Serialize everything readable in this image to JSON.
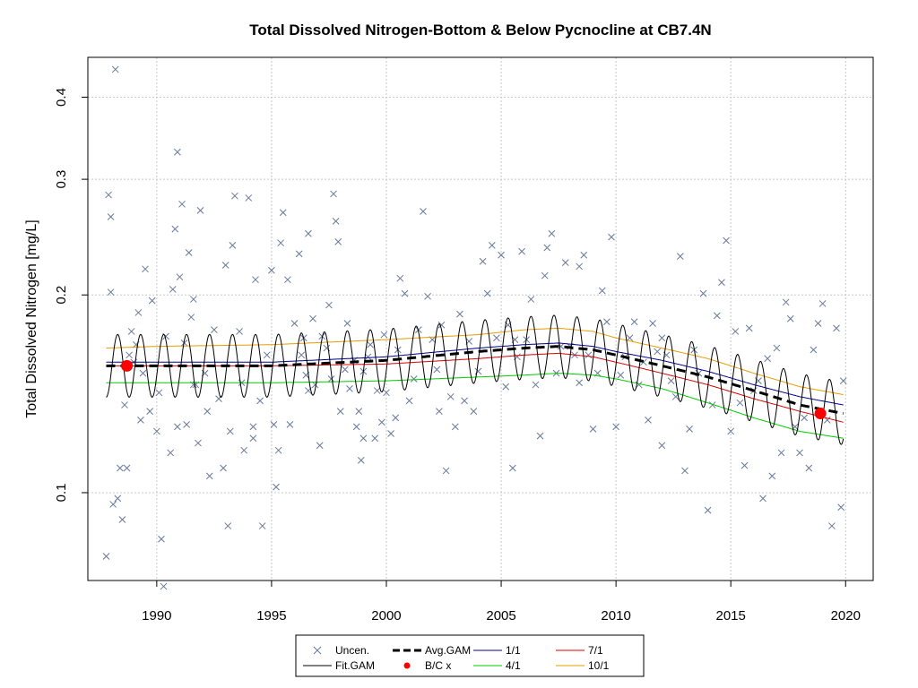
{
  "chart_data": {
    "type": "scatter",
    "title": "Total Dissolved Nitrogen-Bottom & Below Pycnocline at CB7.4N",
    "xlabel": "",
    "ylabel": "Total Dissolved Nitrogen [mg/L]",
    "y_scale": "log",
    "xlim": [
      1987.0,
      2021.2
    ],
    "ylim": [
      0.0735,
      0.46
    ],
    "x_ticks": [
      1990,
      1995,
      2000,
      2005,
      2010,
      2015,
      2020
    ],
    "x_tick_labels": [
      "1990",
      "1995",
      "2000",
      "2005",
      "2010",
      "2015",
      "2020"
    ],
    "y_ticks": [
      0.1,
      0.2,
      0.3,
      0.4
    ],
    "y_tick_labels": [
      "0.1",
      "0.2",
      "0.3",
      "0.4"
    ],
    "grid": true,
    "legend": {
      "placement": "bottom-center",
      "entries": [
        {
          "label": "Uncen.",
          "symbol": "x",
          "color": "#68789b"
        },
        {
          "label": "Avg.GAM",
          "symbol": "dashed-line",
          "color": "#000000"
        },
        {
          "label": "1/1",
          "symbol": "line",
          "color": "#00008b"
        },
        {
          "label": "7/1",
          "symbol": "line",
          "color": "#dd0000"
        },
        {
          "label": "Fit.GAM",
          "symbol": "line",
          "color": "#000000"
        },
        {
          "label": "B/C x",
          "symbol": "dot",
          "color": "#ff0000"
        },
        {
          "label": "4/1",
          "symbol": "line",
          "color": "#00cc00"
        },
        {
          "label": "10/1",
          "symbol": "line",
          "color": "#e69d00"
        }
      ]
    },
    "colors": {
      "points": "#68789b",
      "avg_gam": "#000000",
      "fit_gam": "#000000",
      "bc_x": "#ff0000",
      "s_1_1": "#00008b",
      "s_4_1": "#00cc00",
      "s_7_1": "#dd0000",
      "s_10_1": "#e69d00",
      "grid": "#c8c8c8"
    },
    "fit_gam_seasonal_amplitude": 0.11,
    "series": [
      {
        "name": "Avg.GAM",
        "x": [
          1987.8,
          1990,
          1995,
          2000,
          2004,
          2006,
          2007.5,
          2009,
          2010,
          2012,
          2014,
          2016,
          2018,
          2019.9
        ],
        "values": [
          0.156,
          0.156,
          0.156,
          0.159,
          0.164,
          0.166,
          0.167,
          0.165,
          0.162,
          0.156,
          0.15,
          0.143,
          0.136,
          0.132
        ]
      },
      {
        "name": "1/1",
        "x": [
          1987.8,
          1990,
          1995,
          2000,
          2004,
          2006,
          2007.5,
          2009,
          2010,
          2012,
          2014,
          2016,
          2018,
          2019.9
        ],
        "values": [
          0.158,
          0.158,
          0.158,
          0.161,
          0.166,
          0.168,
          0.169,
          0.167,
          0.164,
          0.159,
          0.153,
          0.146,
          0.14,
          0.136
        ]
      },
      {
        "name": "4/1",
        "x": [
          1987.8,
          1990,
          1995,
          2000,
          2004,
          2006,
          2007.5,
          2009,
          2010,
          2012,
          2014,
          2016,
          2018,
          2019.9
        ],
        "values": [
          0.147,
          0.147,
          0.147,
          0.148,
          0.15,
          0.151,
          0.152,
          0.151,
          0.149,
          0.144,
          0.137,
          0.13,
          0.124,
          0.121
        ]
      },
      {
        "name": "7/1",
        "x": [
          1987.8,
          1990,
          1995,
          2000,
          2004,
          2006,
          2007.5,
          2009,
          2010,
          2012,
          2014,
          2016,
          2018,
          2019.9
        ],
        "values": [
          0.156,
          0.156,
          0.156,
          0.157,
          0.16,
          0.162,
          0.163,
          0.161,
          0.158,
          0.152,
          0.146,
          0.139,
          0.133,
          0.128
        ]
      },
      {
        "name": "10/1",
        "x": [
          1987.8,
          1990,
          1995,
          2000,
          2004,
          2006,
          2007.5,
          2009,
          2010,
          2012,
          2014,
          2016,
          2018,
          2019.9
        ],
        "values": [
          0.166,
          0.167,
          0.168,
          0.171,
          0.174,
          0.177,
          0.178,
          0.176,
          0.172,
          0.166,
          0.16,
          0.152,
          0.145,
          0.141
        ]
      }
    ],
    "bc_points": [
      {
        "x": 1988.7,
        "y": 0.156
      },
      {
        "x": 2018.9,
        "y": 0.132
      }
    ],
    "scatter_points": [
      [
        1987.8,
        0.08
      ],
      [
        1987.9,
        0.284
      ],
      [
        1988.0,
        0.263
      ],
      [
        1988.0,
        0.202
      ],
      [
        1988.1,
        0.096
      ],
      [
        1988.2,
        0.441
      ],
      [
        1988.3,
        0.098
      ],
      [
        1988.4,
        0.109
      ],
      [
        1988.5,
        0.091
      ],
      [
        1988.6,
        0.136
      ],
      [
        1988.7,
        0.109
      ],
      [
        1988.8,
        0.162
      ],
      [
        1988.9,
        0.176
      ],
      [
        1989.0,
        0.158
      ],
      [
        1989.2,
        0.188
      ],
      [
        1989.3,
        0.129
      ],
      [
        1989.4,
        0.152
      ],
      [
        1989.5,
        0.219
      ],
      [
        1989.7,
        0.133
      ],
      [
        1989.8,
        0.196
      ],
      [
        1990.0,
        0.124
      ],
      [
        1990.1,
        0.142
      ],
      [
        1990.2,
        0.085
      ],
      [
        1990.3,
        0.072
      ],
      [
        1990.4,
        0.173
      ],
      [
        1990.6,
        0.115
      ],
      [
        1990.7,
        0.204
      ],
      [
        1990.8,
        0.252
      ],
      [
        1990.9,
        0.33
      ],
      [
        1991.0,
        0.213
      ],
      [
        1991.1,
        0.275
      ],
      [
        1991.2,
        0.169
      ],
      [
        1991.3,
        0.127
      ],
      [
        1991.4,
        0.232
      ],
      [
        1991.5,
        0.185
      ],
      [
        1991.6,
        0.197
      ],
      [
        1991.7,
        0.146
      ],
      [
        1991.8,
        0.119
      ],
      [
        1991.9,
        0.269
      ],
      [
        1992.1,
        0.152
      ],
      [
        1992.2,
        0.133
      ],
      [
        1992.3,
        0.106
      ],
      [
        1992.5,
        0.177
      ],
      [
        1992.7,
        0.139
      ],
      [
        1992.9,
        0.109
      ],
      [
        1993.0,
        0.222
      ],
      [
        1993.1,
        0.089
      ],
      [
        1993.2,
        0.124
      ],
      [
        1993.3,
        0.238
      ],
      [
        1993.4,
        0.283
      ],
      [
        1993.6,
        0.176
      ],
      [
        1993.7,
        0.147
      ],
      [
        1993.8,
        0.116
      ],
      [
        1994.0,
        0.281
      ],
      [
        1994.2,
        0.121
      ],
      [
        1994.3,
        0.211
      ],
      [
        1994.5,
        0.138
      ],
      [
        1994.6,
        0.089
      ],
      [
        1994.8,
        0.162
      ],
      [
        1995.0,
        0.218
      ],
      [
        1995.1,
        0.127
      ],
      [
        1995.2,
        0.102
      ],
      [
        1995.3,
        0.116
      ],
      [
        1995.4,
        0.24
      ],
      [
        1995.5,
        0.267
      ],
      [
        1995.7,
        0.211
      ],
      [
        1995.8,
        0.127
      ],
      [
        1996.0,
        0.181
      ],
      [
        1996.2,
        0.231
      ],
      [
        1996.3,
        0.162
      ],
      [
        1996.4,
        0.172
      ],
      [
        1996.5,
        0.151
      ],
      [
        1996.6,
        0.248
      ],
      [
        1996.8,
        0.184
      ],
      [
        1996.9,
        0.146
      ],
      [
        1997.1,
        0.118
      ],
      [
        1997.2,
        0.173
      ],
      [
        1997.4,
        0.166
      ],
      [
        1997.5,
        0.193
      ],
      [
        1997.6,
        0.149
      ],
      [
        1997.7,
        0.285
      ],
      [
        1997.8,
        0.259
      ],
      [
        1997.9,
        0.241
      ],
      [
        1998.0,
        0.133
      ],
      [
        1998.2,
        0.154
      ],
      [
        1998.3,
        0.181
      ],
      [
        1998.4,
        0.144
      ],
      [
        1998.6,
        0.159
      ],
      [
        1998.7,
        0.126
      ],
      [
        1998.8,
        0.133
      ],
      [
        1998.9,
        0.112
      ],
      [
        1999.0,
        0.121
      ],
      [
        1999.2,
        0.161
      ],
      [
        1999.3,
        0.168
      ],
      [
        1999.5,
        0.121
      ],
      [
        1999.6,
        0.143
      ],
      [
        1999.8,
        0.128
      ],
      [
        1999.9,
        0.174
      ],
      [
        2000.0,
        0.142
      ],
      [
        2000.2,
        0.123
      ],
      [
        2000.4,
        0.13
      ],
      [
        2000.5,
        0.165
      ],
      [
        2000.6,
        0.212
      ],
      [
        2000.8,
        0.201
      ],
      [
        2001.0,
        0.138
      ],
      [
        2001.2,
        0.149
      ],
      [
        2001.4,
        0.177
      ],
      [
        2001.6,
        0.268
      ],
      [
        2001.8,
        0.199
      ],
      [
        2002.0,
        0.171
      ],
      [
        2002.2,
        0.154
      ],
      [
        2002.4,
        0.18
      ],
      [
        2002.6,
        0.108
      ],
      [
        2002.8,
        0.14
      ],
      [
        2003.0,
        0.126
      ],
      [
        2003.2,
        0.187
      ],
      [
        2003.4,
        0.138
      ],
      [
        2003.6,
        0.17
      ],
      [
        2003.8,
        0.133
      ],
      [
        2004.0,
        0.153
      ],
      [
        2004.2,
        0.225
      ],
      [
        2004.4,
        0.201
      ],
      [
        2004.6,
        0.238
      ],
      [
        2004.8,
        0.172
      ],
      [
        2005.0,
        0.23
      ],
      [
        2005.2,
        0.145
      ],
      [
        2005.3,
        0.18
      ],
      [
        2005.5,
        0.109
      ],
      [
        2005.7,
        0.161
      ],
      [
        2005.9,
        0.233
      ],
      [
        2006.1,
        0.171
      ],
      [
        2006.3,
        0.197
      ],
      [
        2006.5,
        0.146
      ],
      [
        2006.7,
        0.122
      ],
      [
        2006.9,
        0.214
      ],
      [
        2007.0,
        0.236
      ],
      [
        2007.2,
        0.248
      ],
      [
        2007.4,
        0.152
      ],
      [
        2007.6,
        0.167
      ],
      [
        2007.8,
        0.224
      ],
      [
        2008.0,
        0.167
      ],
      [
        2008.2,
        0.162
      ],
      [
        2008.4,
        0.147
      ],
      [
        2008.6,
        0.23
      ],
      [
        2008.8,
        0.162
      ],
      [
        2009.0,
        0.125
      ],
      [
        2009.2,
        0.152
      ],
      [
        2009.4,
        0.203
      ],
      [
        2009.6,
        0.182
      ],
      [
        2009.8,
        0.245
      ],
      [
        2010.0,
        0.126
      ],
      [
        2010.2,
        0.151
      ],
      [
        2010.4,
        0.161
      ],
      [
        2010.6,
        0.172
      ],
      [
        2010.8,
        0.182
      ],
      [
        2011.0,
        0.146
      ],
      [
        2011.2,
        0.158
      ],
      [
        2011.4,
        0.129
      ],
      [
        2011.6,
        0.181
      ],
      [
        2011.8,
        0.164
      ],
      [
        2012.0,
        0.118
      ],
      [
        2012.2,
        0.162
      ],
      [
        2012.4,
        0.148
      ],
      [
        2012.6,
        0.14
      ],
      [
        2012.8,
        0.229
      ],
      [
        2013.0,
        0.108
      ],
      [
        2013.2,
        0.125
      ],
      [
        2013.4,
        0.165
      ],
      [
        2013.6,
        0.152
      ],
      [
        2013.8,
        0.201
      ],
      [
        2014.0,
        0.094
      ],
      [
        2014.2,
        0.136
      ],
      [
        2014.4,
        0.186
      ],
      [
        2014.6,
        0.209
      ],
      [
        2014.8,
        0.242
      ],
      [
        2015.0,
        0.124
      ],
      [
        2015.2,
        0.176
      ],
      [
        2015.4,
        0.137
      ],
      [
        2015.6,
        0.11
      ],
      [
        2015.8,
        0.178
      ],
      [
        2016.0,
        0.143
      ],
      [
        2016.2,
        0.148
      ],
      [
        2016.4,
        0.098
      ],
      [
        2016.6,
        0.16
      ],
      [
        2016.8,
        0.106
      ],
      [
        2017.0,
        0.166
      ],
      [
        2017.2,
        0.115
      ],
      [
        2017.4,
        0.195
      ],
      [
        2017.6,
        0.184
      ],
      [
        2017.8,
        0.126
      ],
      [
        2018.0,
        0.115
      ],
      [
        2018.2,
        0.13
      ],
      [
        2018.4,
        0.109
      ],
      [
        2018.6,
        0.165
      ],
      [
        2018.8,
        0.181
      ],
      [
        2019.0,
        0.194
      ],
      [
        2019.2,
        0.129
      ],
      [
        2019.4,
        0.089
      ],
      [
        2019.6,
        0.178
      ],
      [
        2019.8,
        0.095
      ],
      [
        2019.9,
        0.148
      ],
      [
        2012.0,
        0.172
      ],
      [
        2008.4,
        0.221
      ],
      [
        2005.6,
        0.171
      ],
      [
        2002.3,
        0.133
      ],
      [
        1999.0,
        0.153
      ],
      [
        1996.6,
        0.143
      ],
      [
        1994.2,
        0.126
      ],
      [
        1991.6,
        0.146
      ],
      [
        1990.9,
        0.126
      ],
      [
        1989.1,
        0.168
      ]
    ]
  }
}
